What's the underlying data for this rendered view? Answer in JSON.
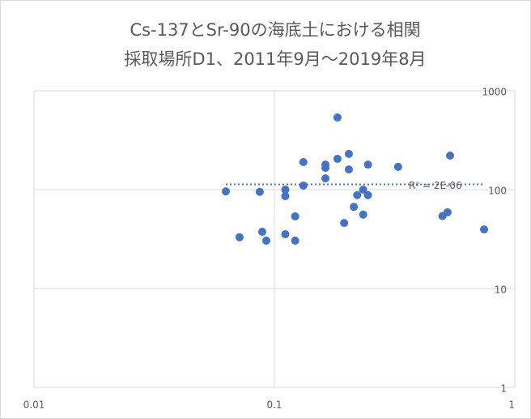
{
  "chart_data": {
    "type": "scatter",
    "title": [
      "Cs-137とSr-90の海底土における相関",
      "採取場所D1、2011年9月～2019年8月"
    ],
    "x": [
      0.0628,
      0.0716,
      0.0869,
      0.089,
      0.0925,
      0.111,
      0.111,
      0.111,
      0.122,
      0.122,
      0.132,
      0.132,
      0.163,
      0.163,
      0.163,
      0.183,
      0.183,
      0.195,
      0.204,
      0.204,
      0.214,
      0.221,
      0.234,
      0.234,
      0.245,
      0.245,
      0.327,
      0.5,
      0.525,
      0.538,
      0.745
    ],
    "values": [
      96,
      33,
      95,
      37.5,
      30.5,
      100,
      86,
      35.4,
      53.7,
      30.5,
      190,
      110,
      179,
      166,
      130,
      537,
      205,
      46,
      230,
      160,
      67,
      88,
      100,
      56,
      179,
      88,
      170,
      54,
      59,
      221,
      39.6
    ],
    "color": "#4472c4",
    "xlim": [
      0.01,
      1
    ],
    "xticks": [
      0.01,
      0.1,
      1
    ],
    "ylim": [
      1,
      1000
    ],
    "yticks": [
      1,
      10,
      100,
      1000
    ],
    "xlog": true,
    "ylog": true,
    "grid": true,
    "trendline": {
      "y": 113,
      "label": "R² = 2E-06",
      "color": "#4472c4"
    }
  }
}
